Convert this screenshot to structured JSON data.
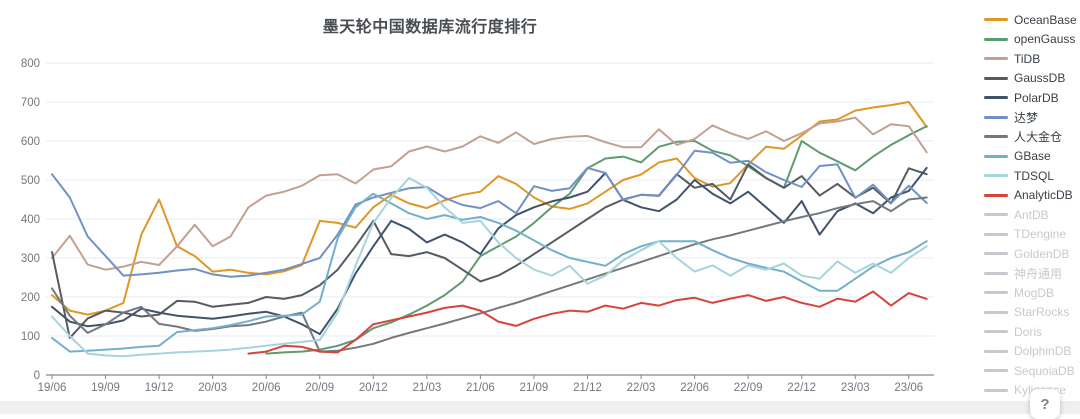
{
  "title": "墨天轮中国数据库流行度排行",
  "help_button_label": "?",
  "axis_color": "#73777f",
  "grid_color": "#e4ebf4",
  "axis_line_color": "#83878e",
  "disabled_color": "#c6c9ce",
  "legend": {
    "position": "right",
    "items": [
      {
        "label": "OceanBase",
        "color": "#df9726",
        "enabled": true
      },
      {
        "label": "openGauss",
        "color": "#5f9b72",
        "enabled": true
      },
      {
        "label": "TiDB",
        "color": "#c3a092",
        "enabled": true
      },
      {
        "label": "GaussDB",
        "color": "#565a61",
        "enabled": true
      },
      {
        "label": "PolarDB",
        "color": "#41536b",
        "enabled": true
      },
      {
        "label": "达梦",
        "color": "#7191c4",
        "enabled": true
      },
      {
        "label": "人大金仓",
        "color": "#75797e",
        "enabled": true
      },
      {
        "label": "GBase",
        "color": "#74b0c9",
        "enabled": true
      },
      {
        "label": "TDSQL",
        "color": "#a6d4dc",
        "enabled": true
      },
      {
        "label": "AnalyticDB",
        "color": "#d7433d",
        "enabled": true
      },
      {
        "label": "AntDB",
        "color": "#c6c9ce",
        "enabled": false
      },
      {
        "label": "TDengine",
        "color": "#c6c9ce",
        "enabled": false
      },
      {
        "label": "GoldenDB",
        "color": "#c6c9ce",
        "enabled": false
      },
      {
        "label": "神舟通用",
        "color": "#c6c9ce",
        "enabled": false
      },
      {
        "label": "MogDB",
        "color": "#c6c9ce",
        "enabled": false
      },
      {
        "label": "StarRocks",
        "color": "#c6c9ce",
        "enabled": false
      },
      {
        "label": "Doris",
        "color": "#c6c9ce",
        "enabled": false
      },
      {
        "label": "DolphinDB",
        "color": "#c6c9ce",
        "enabled": false
      },
      {
        "label": "SequoiaDB",
        "color": "#c6c9ce",
        "enabled": false
      },
      {
        "label": "Kyligence",
        "color": "#c6c9ce",
        "enabled": false
      }
    ]
  },
  "chart_data": {
    "type": "line",
    "title": "墨天轮中国数据库流行度排行",
    "xlabel": "",
    "ylabel": "",
    "ylim": [
      0,
      800
    ],
    "y_ticks": [
      0,
      100,
      200,
      300,
      400,
      500,
      600,
      700,
      800
    ],
    "grid": true,
    "legend_position": "right",
    "x": [
      "19/06",
      "19/07",
      "19/08",
      "19/09",
      "19/10",
      "19/11",
      "19/12",
      "20/01",
      "20/02",
      "20/03",
      "20/04",
      "20/05",
      "20/06",
      "20/07",
      "20/08",
      "20/09",
      "20/10",
      "20/11",
      "20/12",
      "21/01",
      "21/02",
      "21/03",
      "21/04",
      "21/05",
      "21/06",
      "21/07",
      "21/08",
      "21/09",
      "21/10",
      "21/11",
      "21/12",
      "22/01",
      "22/02",
      "22/03",
      "22/04",
      "22/05",
      "22/06",
      "22/07",
      "22/08",
      "22/09",
      "22/10",
      "22/11",
      "22/12",
      "23/01",
      "23/02",
      "23/03",
      "23/04",
      "23/05",
      "23/06",
      "23/07"
    ],
    "x_tick_every": 3,
    "series": [
      {
        "name": "OceanBase",
        "color": "#df9726",
        "values": [
          205,
          165,
          155,
          165,
          185,
          360,
          450,
          330,
          305,
          265,
          270,
          262,
          258,
          266,
          282,
          395,
          390,
          378,
          430,
          462,
          440,
          428,
          448,
          462,
          470,
          510,
          490,
          455,
          432,
          426,
          440,
          470,
          500,
          514,
          545,
          555,
          505,
          483,
          492,
          540,
          585,
          580,
          614,
          650,
          655,
          678,
          686,
          692,
          700,
          636
        ]
      },
      {
        "name": "openGauss",
        "color": "#5f9b72",
        "values": [
          null,
          null,
          null,
          null,
          null,
          null,
          null,
          null,
          null,
          null,
          null,
          null,
          55,
          58,
          60,
          65,
          75,
          90,
          120,
          135,
          155,
          178,
          205,
          240,
          305,
          330,
          355,
          390,
          430,
          465,
          530,
          555,
          560,
          545,
          585,
          598,
          600,
          575,
          563,
          535,
          505,
          480,
          600,
          570,
          548,
          525,
          560,
          590,
          615,
          638
        ]
      },
      {
        "name": "TiDB",
        "color": "#c3a092",
        "values": [
          300,
          357,
          283,
          270,
          278,
          290,
          282,
          330,
          385,
          330,
          355,
          430,
          460,
          470,
          485,
          512,
          515,
          491,
          527,
          535,
          573,
          586,
          573,
          586,
          612,
          595,
          622,
          592,
          605,
          611,
          613,
          597,
          584,
          584,
          630,
          590,
          605,
          640,
          620,
          605,
          625,
          600,
          620,
          645,
          650,
          660,
          617,
          643,
          638,
          571
        ]
      },
      {
        "name": "GaussDB",
        "color": "#565a61",
        "values": [
          315,
          95,
          145,
          165,
          160,
          150,
          155,
          190,
          188,
          175,
          180,
          185,
          200,
          195,
          205,
          230,
          270,
          330,
          395,
          310,
          305,
          315,
          300,
          270,
          240,
          255,
          280,
          310,
          340,
          370,
          400,
          430,
          450,
          462,
          460,
          515,
          480,
          490,
          450,
          540,
          505,
          480,
          510,
          460,
          490,
          455,
          480,
          440,
          530,
          515
        ]
      },
      {
        "name": "PolarDB",
        "color": "#41536b",
        "values": [
          175,
          137,
          125,
          130,
          140,
          170,
          160,
          152,
          148,
          144,
          150,
          157,
          162,
          150,
          130,
          105,
          170,
          260,
          330,
          395,
          375,
          340,
          360,
          340,
          310,
          376,
          410,
          430,
          445,
          455,
          470,
          518,
          449,
          430,
          420,
          450,
          500,
          465,
          440,
          470,
          430,
          390,
          446,
          360,
          420,
          440,
          415,
          455,
          472,
          531
        ]
      },
      {
        "name": "达梦",
        "color": "#7191c4",
        "values": [
          515,
          455,
          355,
          305,
          255,
          258,
          262,
          268,
          272,
          258,
          252,
          255,
          262,
          270,
          285,
          300,
          360,
          437,
          455,
          467,
          479,
          482,
          454,
          436,
          428,
          446,
          415,
          484,
          472,
          479,
          531,
          518,
          449,
          462,
          459,
          513,
          575,
          570,
          544,
          549,
          520,
          500,
          482,
          536,
          540,
          454,
          488,
          441,
          485,
          441
        ]
      },
      {
        "name": "人大金仓",
        "color": "#75797e",
        "values": [
          222,
          152,
          108,
          130,
          160,
          175,
          131,
          124,
          113,
          118,
          125,
          128,
          137,
          150,
          160,
          60,
          62,
          70,
          80,
          95,
          108,
          120,
          132,
          145,
          158,
          172,
          185,
          200,
          215,
          230,
          245,
          260,
          275,
          290,
          305,
          320,
          335,
          348,
          358,
          370,
          382,
          394,
          405,
          415,
          428,
          438,
          446,
          420,
          450,
          455
        ]
      },
      {
        "name": "GBase",
        "color": "#74b0c9",
        "values": [
          95,
          60,
          62,
          65,
          68,
          72,
          75,
          110,
          115,
          120,
          128,
          138,
          150,
          152,
          155,
          188,
          350,
          430,
          465,
          440,
          415,
          400,
          410,
          398,
          405,
          390,
          370,
          345,
          320,
          300,
          290,
          280,
          310,
          330,
          343,
          343,
          343,
          320,
          300,
          286,
          275,
          265,
          240,
          216,
          216,
          247,
          278,
          300,
          315,
          343
        ]
      },
      {
        "name": "TDSQL",
        "color": "#a6d4dc",
        "values": [
          150,
          100,
          55,
          50,
          48,
          52,
          55,
          58,
          60,
          62,
          65,
          70,
          75,
          80,
          85,
          90,
          160,
          280,
          390,
          454,
          505,
          480,
          430,
          390,
          395,
          340,
          300,
          270,
          255,
          280,
          234,
          255,
          294,
          320,
          343,
          300,
          265,
          281,
          255,
          281,
          270,
          286,
          255,
          247,
          291,
          262,
          286,
          262,
          300,
          330
        ]
      },
      {
        "name": "AnalyticDB",
        "color": "#d7433d",
        "values": [
          null,
          null,
          null,
          null,
          null,
          null,
          null,
          null,
          null,
          null,
          null,
          55,
          60,
          75,
          72,
          60,
          58,
          90,
          130,
          140,
          150,
          160,
          172,
          178,
          165,
          137,
          126,
          144,
          157,
          165,
          162,
          178,
          170,
          185,
          178,
          192,
          198,
          185,
          196,
          205,
          190,
          200,
          185,
          175,
          196,
          188,
          214,
          178,
          210,
          195
        ]
      }
    ]
  }
}
